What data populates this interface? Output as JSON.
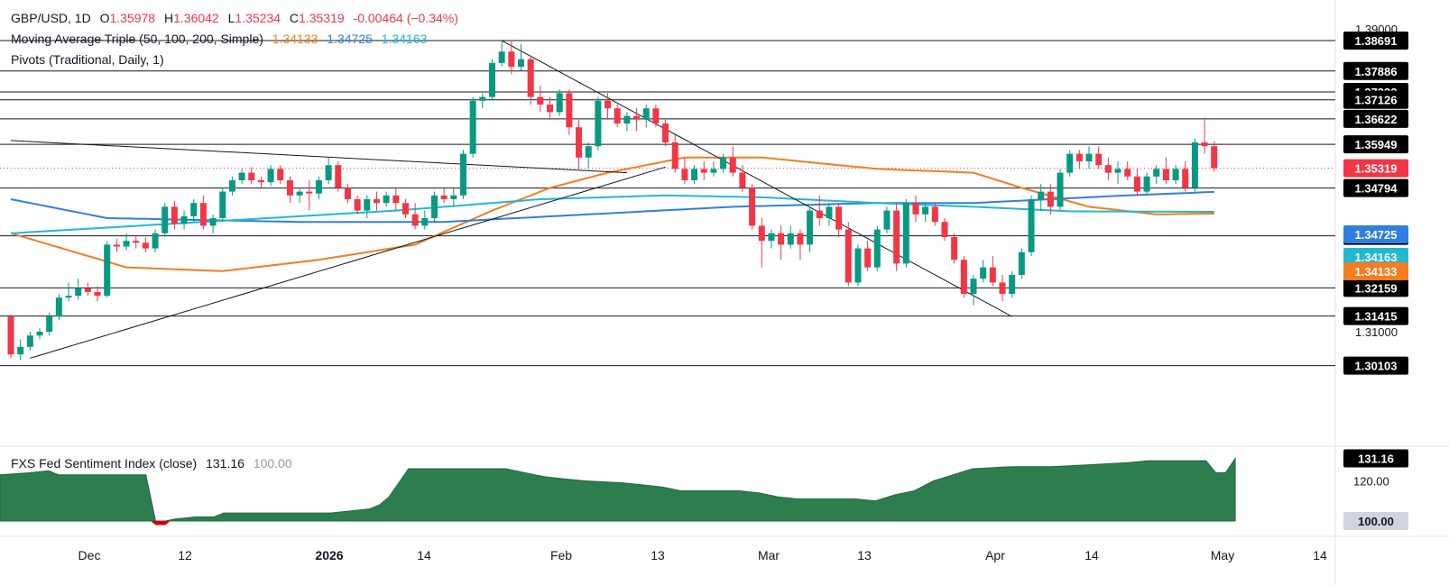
{
  "header": {
    "symbol": "GBP/USD, 1D",
    "o_label": "O",
    "o_value": "1.35978",
    "h_label": "H",
    "h_value": "1.36042",
    "l_label": "L",
    "l_value": "1.35234",
    "c_label": "C",
    "c_value": "1.35319",
    "change": "-0.00464 (−0.34%)",
    "ma_title": "Moving Average Triple (50, 100, 200, Simple)",
    "ma_50_value": "1.34133",
    "ma_100_value": "1.34725",
    "ma_200_value": "1.34163",
    "pivots_title": "Pivots (Traditional, Daily, 1)",
    "sentiment_title": "FXS Fed Sentiment Index (close)",
    "sentiment_value": "131.16",
    "sentiment_base": "100.00"
  },
  "colors": {
    "up": "#089981",
    "down": "#f23645",
    "ma50": "#f57c1f",
    "ma100": "#2f7fe0",
    "ma200": "#22b8cf",
    "sentiment_fill": "#2e7d4f",
    "sentiment_neg": "#d40000",
    "label_black": "#000000",
    "current_price": "#f23645"
  },
  "chart_data": [
    {
      "type": "candlestick",
      "title": "GBP/USD, 1D",
      "y_axis_ticks": [
        "1.39000",
        "1.31000"
      ],
      "ylim": [
        1.2935,
        1.3935
      ],
      "x_axis_ticks": [
        "Dec",
        "12",
        "2026",
        "14",
        "Feb",
        "13",
        "Mar",
        "13",
        "Apr",
        "14",
        "May",
        "14"
      ],
      "x_start": "2025-11-15",
      "candles": [
        [
          1.314,
          1.3145,
          1.303,
          1.304
        ],
        [
          1.304,
          1.308,
          1.3025,
          1.306
        ],
        [
          1.306,
          1.31,
          1.305,
          1.309
        ],
        [
          1.309,
          1.311,
          1.308,
          1.31
        ],
        [
          1.31,
          1.315,
          1.309,
          1.314
        ],
        [
          1.314,
          1.32,
          1.313,
          1.319
        ],
        [
          1.319,
          1.323,
          1.318,
          1.3195
        ],
        [
          1.3195,
          1.324,
          1.3185,
          1.3215
        ],
        [
          1.3215,
          1.323,
          1.3195,
          1.3205
        ],
        [
          1.3205,
          1.322,
          1.318,
          1.3195
        ],
        [
          1.3195,
          1.334,
          1.319,
          1.333
        ],
        [
          1.333,
          1.3345,
          1.331,
          1.3325
        ],
        [
          1.3325,
          1.336,
          1.3315,
          1.334
        ],
        [
          1.334,
          1.3355,
          1.332,
          1.3335
        ],
        [
          1.3335,
          1.335,
          1.331,
          1.332
        ],
        [
          1.332,
          1.337,
          1.331,
          1.336
        ],
        [
          1.336,
          1.344,
          1.335,
          1.343
        ],
        [
          1.343,
          1.3445,
          1.337,
          1.3385
        ],
        [
          1.3385,
          1.342,
          1.337,
          1.3405
        ],
        [
          1.3405,
          1.345,
          1.339,
          1.344
        ],
        [
          1.344,
          1.346,
          1.337,
          1.338
        ],
        [
          1.338,
          1.341,
          1.336,
          1.34
        ],
        [
          1.34,
          1.348,
          1.339,
          1.347
        ],
        [
          1.347,
          1.351,
          1.346,
          1.35
        ],
        [
          1.35,
          1.353,
          1.349,
          1.352
        ],
        [
          1.352,
          1.3535,
          1.349,
          1.35
        ],
        [
          1.35,
          1.351,
          1.348,
          1.3495
        ],
        [
          1.3495,
          1.354,
          1.3485,
          1.353
        ],
        [
          1.353,
          1.354,
          1.349,
          1.35
        ],
        [
          1.35,
          1.351,
          1.344,
          1.346
        ],
        [
          1.346,
          1.348,
          1.344,
          1.347
        ],
        [
          1.347,
          1.35,
          1.342,
          1.3465
        ],
        [
          1.3465,
          1.351,
          1.345,
          1.35
        ],
        [
          1.35,
          1.356,
          1.349,
          1.354
        ],
        [
          1.354,
          1.355,
          1.347,
          1.348
        ],
        [
          1.348,
          1.349,
          1.344,
          1.345
        ],
        [
          1.345,
          1.346,
          1.341,
          1.342
        ],
        [
          1.342,
          1.346,
          1.34,
          1.345
        ],
        [
          1.345,
          1.347,
          1.342,
          1.344
        ],
        [
          1.344,
          1.347,
          1.343,
          1.346
        ],
        [
          1.346,
          1.348,
          1.342,
          1.344
        ],
        [
          1.344,
          1.345,
          1.34,
          1.341
        ],
        [
          1.341,
          1.344,
          1.337,
          1.338
        ],
        [
          1.338,
          1.342,
          1.337,
          1.34
        ],
        [
          1.34,
          1.347,
          1.339,
          1.346
        ],
        [
          1.346,
          1.348,
          1.344,
          1.345
        ],
        [
          1.345,
          1.348,
          1.343,
          1.346
        ],
        [
          1.346,
          1.358,
          1.345,
          1.357
        ],
        [
          1.357,
          1.372,
          1.356,
          1.371
        ],
        [
          1.371,
          1.373,
          1.369,
          1.372
        ],
        [
          1.372,
          1.382,
          1.371,
          1.381
        ],
        [
          1.381,
          1.3869,
          1.38,
          1.384
        ],
        [
          1.384,
          1.387,
          1.378,
          1.38
        ],
        [
          1.38,
          1.386,
          1.379,
          1.382
        ],
        [
          1.382,
          1.383,
          1.37,
          1.372
        ],
        [
          1.372,
          1.375,
          1.368,
          1.37
        ],
        [
          1.37,
          1.372,
          1.366,
          1.368
        ],
        [
          1.368,
          1.374,
          1.367,
          1.373
        ],
        [
          1.373,
          1.374,
          1.362,
          1.364
        ],
        [
          1.364,
          1.366,
          1.353,
          1.356
        ],
        [
          1.356,
          1.36,
          1.353,
          1.359
        ],
        [
          1.359,
          1.372,
          1.358,
          1.371
        ],
        [
          1.371,
          1.373,
          1.366,
          1.369
        ],
        [
          1.369,
          1.37,
          1.364,
          1.365
        ],
        [
          1.365,
          1.368,
          1.363,
          1.367
        ],
        [
          1.367,
          1.369,
          1.363,
          1.366
        ],
        [
          1.366,
          1.37,
          1.364,
          1.369
        ],
        [
          1.369,
          1.37,
          1.364,
          1.365
        ],
        [
          1.365,
          1.366,
          1.359,
          1.36
        ],
        [
          1.36,
          1.362,
          1.352,
          1.353
        ],
        [
          1.353,
          1.356,
          1.349,
          1.35
        ],
        [
          1.35,
          1.354,
          1.349,
          1.353
        ],
        [
          1.353,
          1.355,
          1.35,
          1.352
        ],
        [
          1.352,
          1.355,
          1.351,
          1.353
        ],
        [
          1.353,
          1.357,
          1.352,
          1.356
        ],
        [
          1.356,
          1.359,
          1.351,
          1.352
        ],
        [
          1.352,
          1.354,
          1.347,
          1.348
        ],
        [
          1.348,
          1.349,
          1.337,
          1.338
        ],
        [
          1.338,
          1.34,
          1.327,
          1.334
        ],
        [
          1.334,
          1.337,
          1.332,
          1.336
        ],
        [
          1.336,
          1.338,
          1.329,
          1.333
        ],
        [
          1.333,
          1.338,
          1.332,
          1.336
        ],
        [
          1.336,
          1.337,
          1.329,
          1.333
        ],
        [
          1.333,
          1.343,
          1.331,
          1.342
        ],
        [
          1.342,
          1.346,
          1.338,
          1.34
        ],
        [
          1.34,
          1.344,
          1.338,
          1.343
        ],
        [
          1.343,
          1.344,
          1.335,
          1.337
        ],
        [
          1.337,
          1.339,
          1.322,
          1.323
        ],
        [
          1.323,
          1.333,
          1.322,
          1.332
        ],
        [
          1.332,
          1.334,
          1.326,
          1.327
        ],
        [
          1.327,
          1.338,
          1.326,
          1.337
        ],
        [
          1.337,
          1.343,
          1.336,
          1.342
        ],
        [
          1.342,
          1.344,
          1.326,
          1.328
        ],
        [
          1.328,
          1.345,
          1.327,
          1.344
        ],
        [
          1.344,
          1.346,
          1.339,
          1.341
        ],
        [
          1.341,
          1.344,
          1.339,
          1.343
        ],
        [
          1.343,
          1.344,
          1.338,
          1.339
        ],
        [
          1.339,
          1.34,
          1.334,
          1.335
        ],
        [
          1.335,
          1.336,
          1.328,
          1.329
        ],
        [
          1.329,
          1.33,
          1.319,
          1.32
        ],
        [
          1.32,
          1.325,
          1.317,
          1.324
        ],
        [
          1.324,
          1.329,
          1.323,
          1.327
        ],
        [
          1.327,
          1.33,
          1.322,
          1.323
        ],
        [
          1.323,
          1.325,
          1.318,
          1.32
        ],
        [
          1.32,
          1.326,
          1.319,
          1.325
        ],
        [
          1.325,
          1.332,
          1.324,
          1.331
        ],
        [
          1.331,
          1.346,
          1.33,
          1.345
        ],
        [
          1.345,
          1.349,
          1.342,
          1.347
        ],
        [
          1.347,
          1.349,
          1.341,
          1.343
        ],
        [
          1.343,
          1.353,
          1.342,
          1.352
        ],
        [
          1.352,
          1.358,
          1.351,
          1.357
        ],
        [
          1.357,
          1.358,
          1.353,
          1.355
        ],
        [
          1.355,
          1.359,
          1.353,
          1.357
        ],
        [
          1.357,
          1.359,
          1.353,
          1.354
        ],
        [
          1.354,
          1.356,
          1.35,
          1.352
        ],
        [
          1.352,
          1.355,
          1.349,
          1.353
        ],
        [
          1.353,
          1.355,
          1.35,
          1.351
        ],
        [
          1.351,
          1.353,
          1.346,
          1.347
        ],
        [
          1.347,
          1.352,
          1.346,
          1.351
        ],
        [
          1.351,
          1.354,
          1.349,
          1.353
        ],
        [
          1.353,
          1.356,
          1.349,
          1.35
        ],
        [
          1.35,
          1.354,
          1.349,
          1.353
        ],
        [
          1.353,
          1.355,
          1.347,
          1.348
        ],
        [
          1.348,
          1.361,
          1.347,
          1.36
        ],
        [
          1.36,
          1.3662,
          1.357,
          1.359
        ],
        [
          1.359,
          1.3604,
          1.3523,
          1.3532
        ]
      ],
      "moving_averages": [
        {
          "name": "MA 50",
          "anchors": [
            [
              0,
              1.336
            ],
            [
              12,
              1.327
            ],
            [
              22,
              1.326
            ],
            [
              32,
              1.329
            ],
            [
              42,
              1.333
            ],
            [
              50,
              1.342
            ],
            [
              56,
              1.348
            ],
            [
              62,
              1.352
            ],
            [
              70,
              1.356
            ],
            [
              78,
              1.356
            ],
            [
              90,
              1.353
            ],
            [
              100,
              1.352
            ],
            [
              105,
              1.348
            ],
            [
              112,
              1.343
            ],
            [
              119,
              1.341
            ],
            [
              128,
              1.3413
            ]
          ]
        },
        {
          "name": "MA 100",
          "anchors": [
            [
              0,
              1.345
            ],
            [
              10,
              1.34
            ],
            [
              30,
              1.339
            ],
            [
              45,
              1.339
            ],
            [
              60,
              1.341
            ],
            [
              75,
              1.343
            ],
            [
              90,
              1.344
            ],
            [
              100,
              1.344
            ],
            [
              108,
              1.345
            ],
            [
              116,
              1.346
            ],
            [
              128,
              1.34725
            ]
          ]
        },
        {
          "name": "MA 200",
          "anchors": [
            [
              0,
              1.336
            ],
            [
              20,
              1.339
            ],
            [
              40,
              1.342
            ],
            [
              55,
              1.345
            ],
            [
              68,
              1.346
            ],
            [
              78,
              1.3455
            ],
            [
              90,
              1.344
            ],
            [
              100,
              1.343
            ],
            [
              110,
              1.3418
            ],
            [
              128,
              1.34163
            ]
          ]
        }
      ],
      "pivot_levels": [
        "1.38691",
        "1.37886",
        "1.37332",
        "1.37126",
        "1.36622",
        "1.35949",
        "1.34794",
        "1.33532",
        "1.32159",
        "1.31415",
        "1.30103"
      ],
      "price_labels": [
        {
          "label": "1.35319",
          "value": 1.35319
        },
        {
          "label": "1.34725",
          "value": 1.34725
        },
        {
          "label": "1.34163",
          "value": 1.34163
        },
        {
          "label": "1.34133",
          "value": 1.34133
        }
      ],
      "trendlines": [
        {
          "from": [
            0,
            1.3605
          ],
          "to": [
            64,
            1.352
          ]
        },
        {
          "from": [
            2,
            1.303
          ],
          "to": [
            68,
            1.3535
          ]
        },
        {
          "from": [
            51,
            1.3869
          ],
          "to": [
            104,
            1.314
          ]
        }
      ]
    },
    {
      "type": "area",
      "title": "FXS Fed Sentiment Index (close)",
      "y_axis_ticks": [
        "120.00",
        "100.00"
      ],
      "ylim": [
        93,
        137
      ],
      "baseline": 100,
      "current_value": "131.16",
      "anchors": [
        [
          0,
          123
        ],
        [
          3,
          124
        ],
        [
          5,
          125
        ],
        [
          6,
          123
        ],
        [
          15,
          123
        ],
        [
          16,
          98
        ],
        [
          17,
          98
        ],
        [
          18,
          101
        ],
        [
          20,
          102
        ],
        [
          22,
          102
        ],
        [
          23,
          104
        ],
        [
          34,
          104
        ],
        [
          36,
          105
        ],
        [
          38,
          106
        ],
        [
          39,
          108
        ],
        [
          40,
          112
        ],
        [
          42,
          126
        ],
        [
          52,
          126
        ],
        [
          54,
          124
        ],
        [
          56,
          122
        ],
        [
          58,
          121
        ],
        [
          60,
          120
        ],
        [
          64,
          119
        ],
        [
          66,
          118
        ],
        [
          68,
          117
        ],
        [
          70,
          115
        ],
        [
          76,
          115
        ],
        [
          78,
          114
        ],
        [
          80,
          112
        ],
        [
          82,
          111
        ],
        [
          84,
          111
        ],
        [
          88,
          111
        ],
        [
          90,
          110
        ],
        [
          92,
          113
        ],
        [
          94,
          115
        ],
        [
          96,
          120
        ],
        [
          98,
          123
        ],
        [
          100,
          126
        ],
        [
          104,
          127
        ],
        [
          108,
          127
        ],
        [
          112,
          128
        ],
        [
          116,
          129
        ],
        [
          118,
          130
        ],
        [
          120,
          130
        ],
        [
          124,
          130
        ],
        [
          125,
          124
        ],
        [
          126,
          124
        ],
        [
          127,
          131.16
        ]
      ]
    }
  ]
}
